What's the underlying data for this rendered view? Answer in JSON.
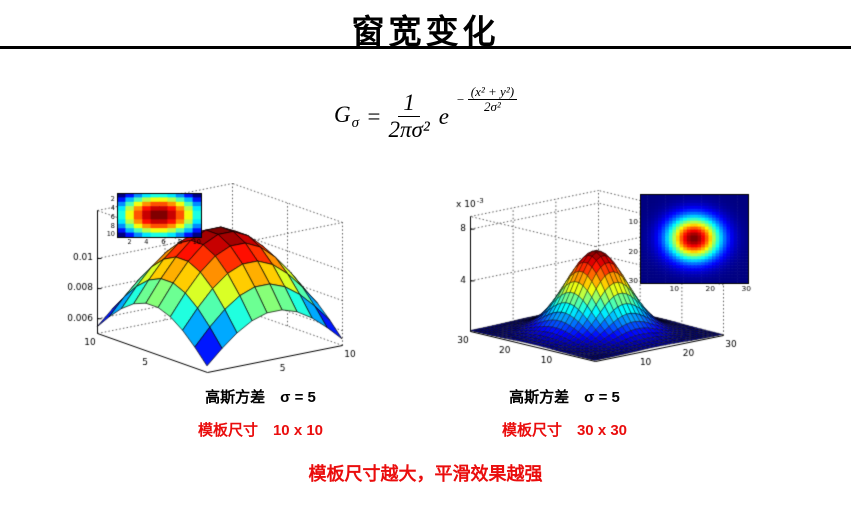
{
  "title": "窗宽变化",
  "formula": {
    "g": "G",
    "g_sub": "σ",
    "equals": "=",
    "coef_num": "1",
    "coef_den": "2πσ²",
    "e": "e",
    "exp_minus": "−",
    "exp_num": "(x² + y²)",
    "exp_den": "2σ²"
  },
  "panels": {
    "left": {
      "variance_caption": "高斯方差　σ = 5",
      "size_caption": "模板尺寸　10 x 10"
    },
    "right": {
      "variance_caption": "高斯方差　σ = 5",
      "size_caption": "模板尺寸　30 x 30"
    }
  },
  "conclusion": "模板尺寸越大，平滑效果越强",
  "colors": {
    "accent_red": "#ea0d0d",
    "jet_low": "#00007f",
    "jet_high": "#7f0000"
  },
  "chart_data": [
    {
      "id": "surface-10x10",
      "type": "surface3d",
      "desc": "3D surf plot of 2D Gaussian kernel, sigma=5, template size 10x10, jet colormap",
      "grid_n": 10,
      "sigma": 5,
      "z_base_t": 0.05,
      "z_peak_t": 0.88,
      "z_ticks": [
        {
          "label": "0.006",
          "t": 0.12
        },
        {
          "label": "0.008",
          "t": 0.365
        },
        {
          "label": "0.01",
          "t": 0.61
        }
      ],
      "x_ticks": [
        {
          "label": "5",
          "t": 0.5
        },
        {
          "label": "10",
          "t": 1
        }
      ],
      "y_ticks": [
        {
          "label": "5",
          "t": 0.5
        },
        {
          "label": "10",
          "t": 1
        }
      ],
      "colormap": "jet"
    },
    {
      "id": "inset-10x10",
      "type": "heatmap",
      "desc": "2D image of 10x10 Gaussian kernel, sigma=5",
      "grid_n": 10,
      "sigma": 5,
      "x_ticks": [
        "2",
        "4",
        "6",
        "8",
        "10"
      ],
      "y_ticks": [
        "2",
        "4",
        "6",
        "8",
        "10"
      ],
      "colormap": "jet"
    },
    {
      "id": "surface-30x30",
      "type": "surface3d",
      "desc": "3D surf plot of 2D Gaussian kernel, sigma=5, template size 30x30, jet colormap",
      "grid_n": 30,
      "sigma": 5,
      "z_base_t": 0.005,
      "z_peak_t": 0.71,
      "z_label_prefix": "x 10",
      "z_label_exp": "-3",
      "z_ticks": [
        {
          "label": "4",
          "t": 0.44
        },
        {
          "label": "8",
          "t": 0.89
        }
      ],
      "x_ticks": [
        {
          "label": "10",
          "t": 0.333
        },
        {
          "label": "20",
          "t": 0.667
        },
        {
          "label": "30",
          "t": 1
        }
      ],
      "y_ticks": [
        {
          "label": "10",
          "t": 0.333
        },
        {
          "label": "20",
          "t": 0.667
        },
        {
          "label": "30",
          "t": 1
        }
      ],
      "colormap": "jet"
    },
    {
      "id": "inset-30x30",
      "type": "heatmap",
      "desc": "2D image of 30x30 Gaussian kernel, sigma=5",
      "grid_n": 30,
      "sigma": 5,
      "x_ticks": [
        "10",
        "20",
        "30"
      ],
      "y_ticks": [
        "10",
        "20",
        "30"
      ],
      "colormap": "jet"
    }
  ]
}
